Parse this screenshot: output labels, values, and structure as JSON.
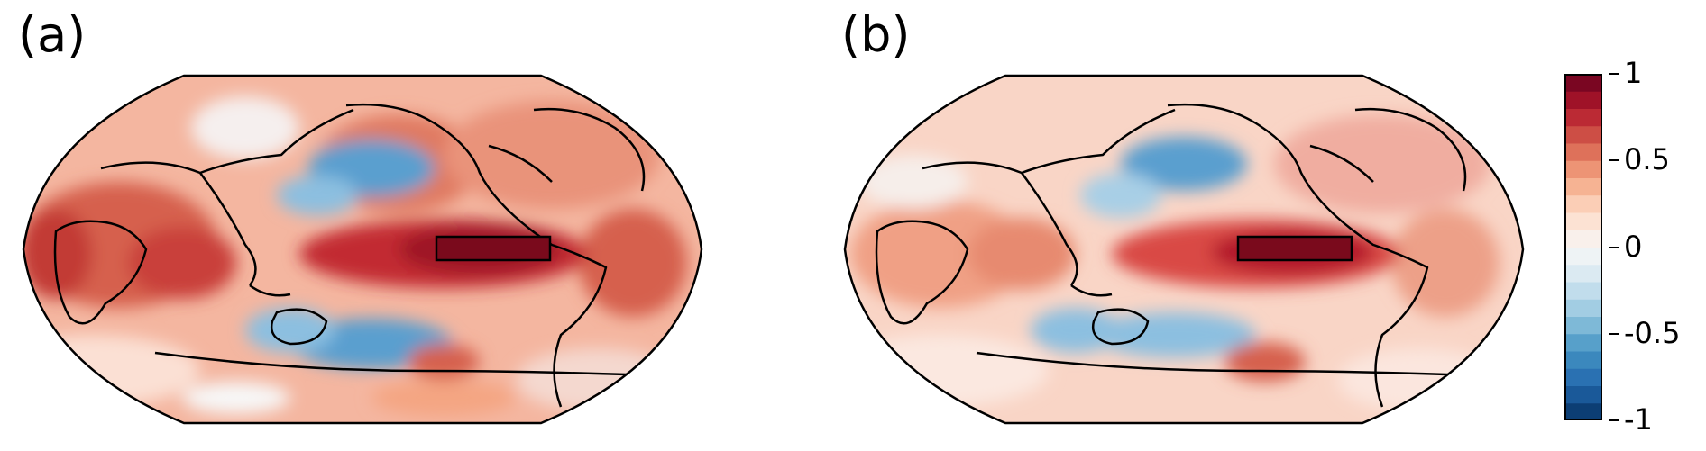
{
  "panels": [
    {
      "label": "(a)"
    },
    {
      "label": "(b)"
    }
  ],
  "colorbar": {
    "range": [
      -1,
      1
    ],
    "levels": 20,
    "ticks": [
      "1",
      "0.5",
      "0",
      "-0.5",
      "-1"
    ],
    "colormap": "RdBu_r",
    "colors": [
      "#053061",
      "#2166ac",
      "#4393c3",
      "#92c5de",
      "#d1e5f0",
      "#f7f7f7",
      "#fddbc7",
      "#f4a582",
      "#d6604d",
      "#b2182b",
      "#67001f"
    ]
  },
  "map": {
    "projection": "Robinson, centered on the Pacific",
    "highlight_box": "Niño-3 region (equatorial eastern Pacific)",
    "colors": {
      "coastline": "#000000",
      "box_fill": "#7a0a1c"
    }
  }
}
